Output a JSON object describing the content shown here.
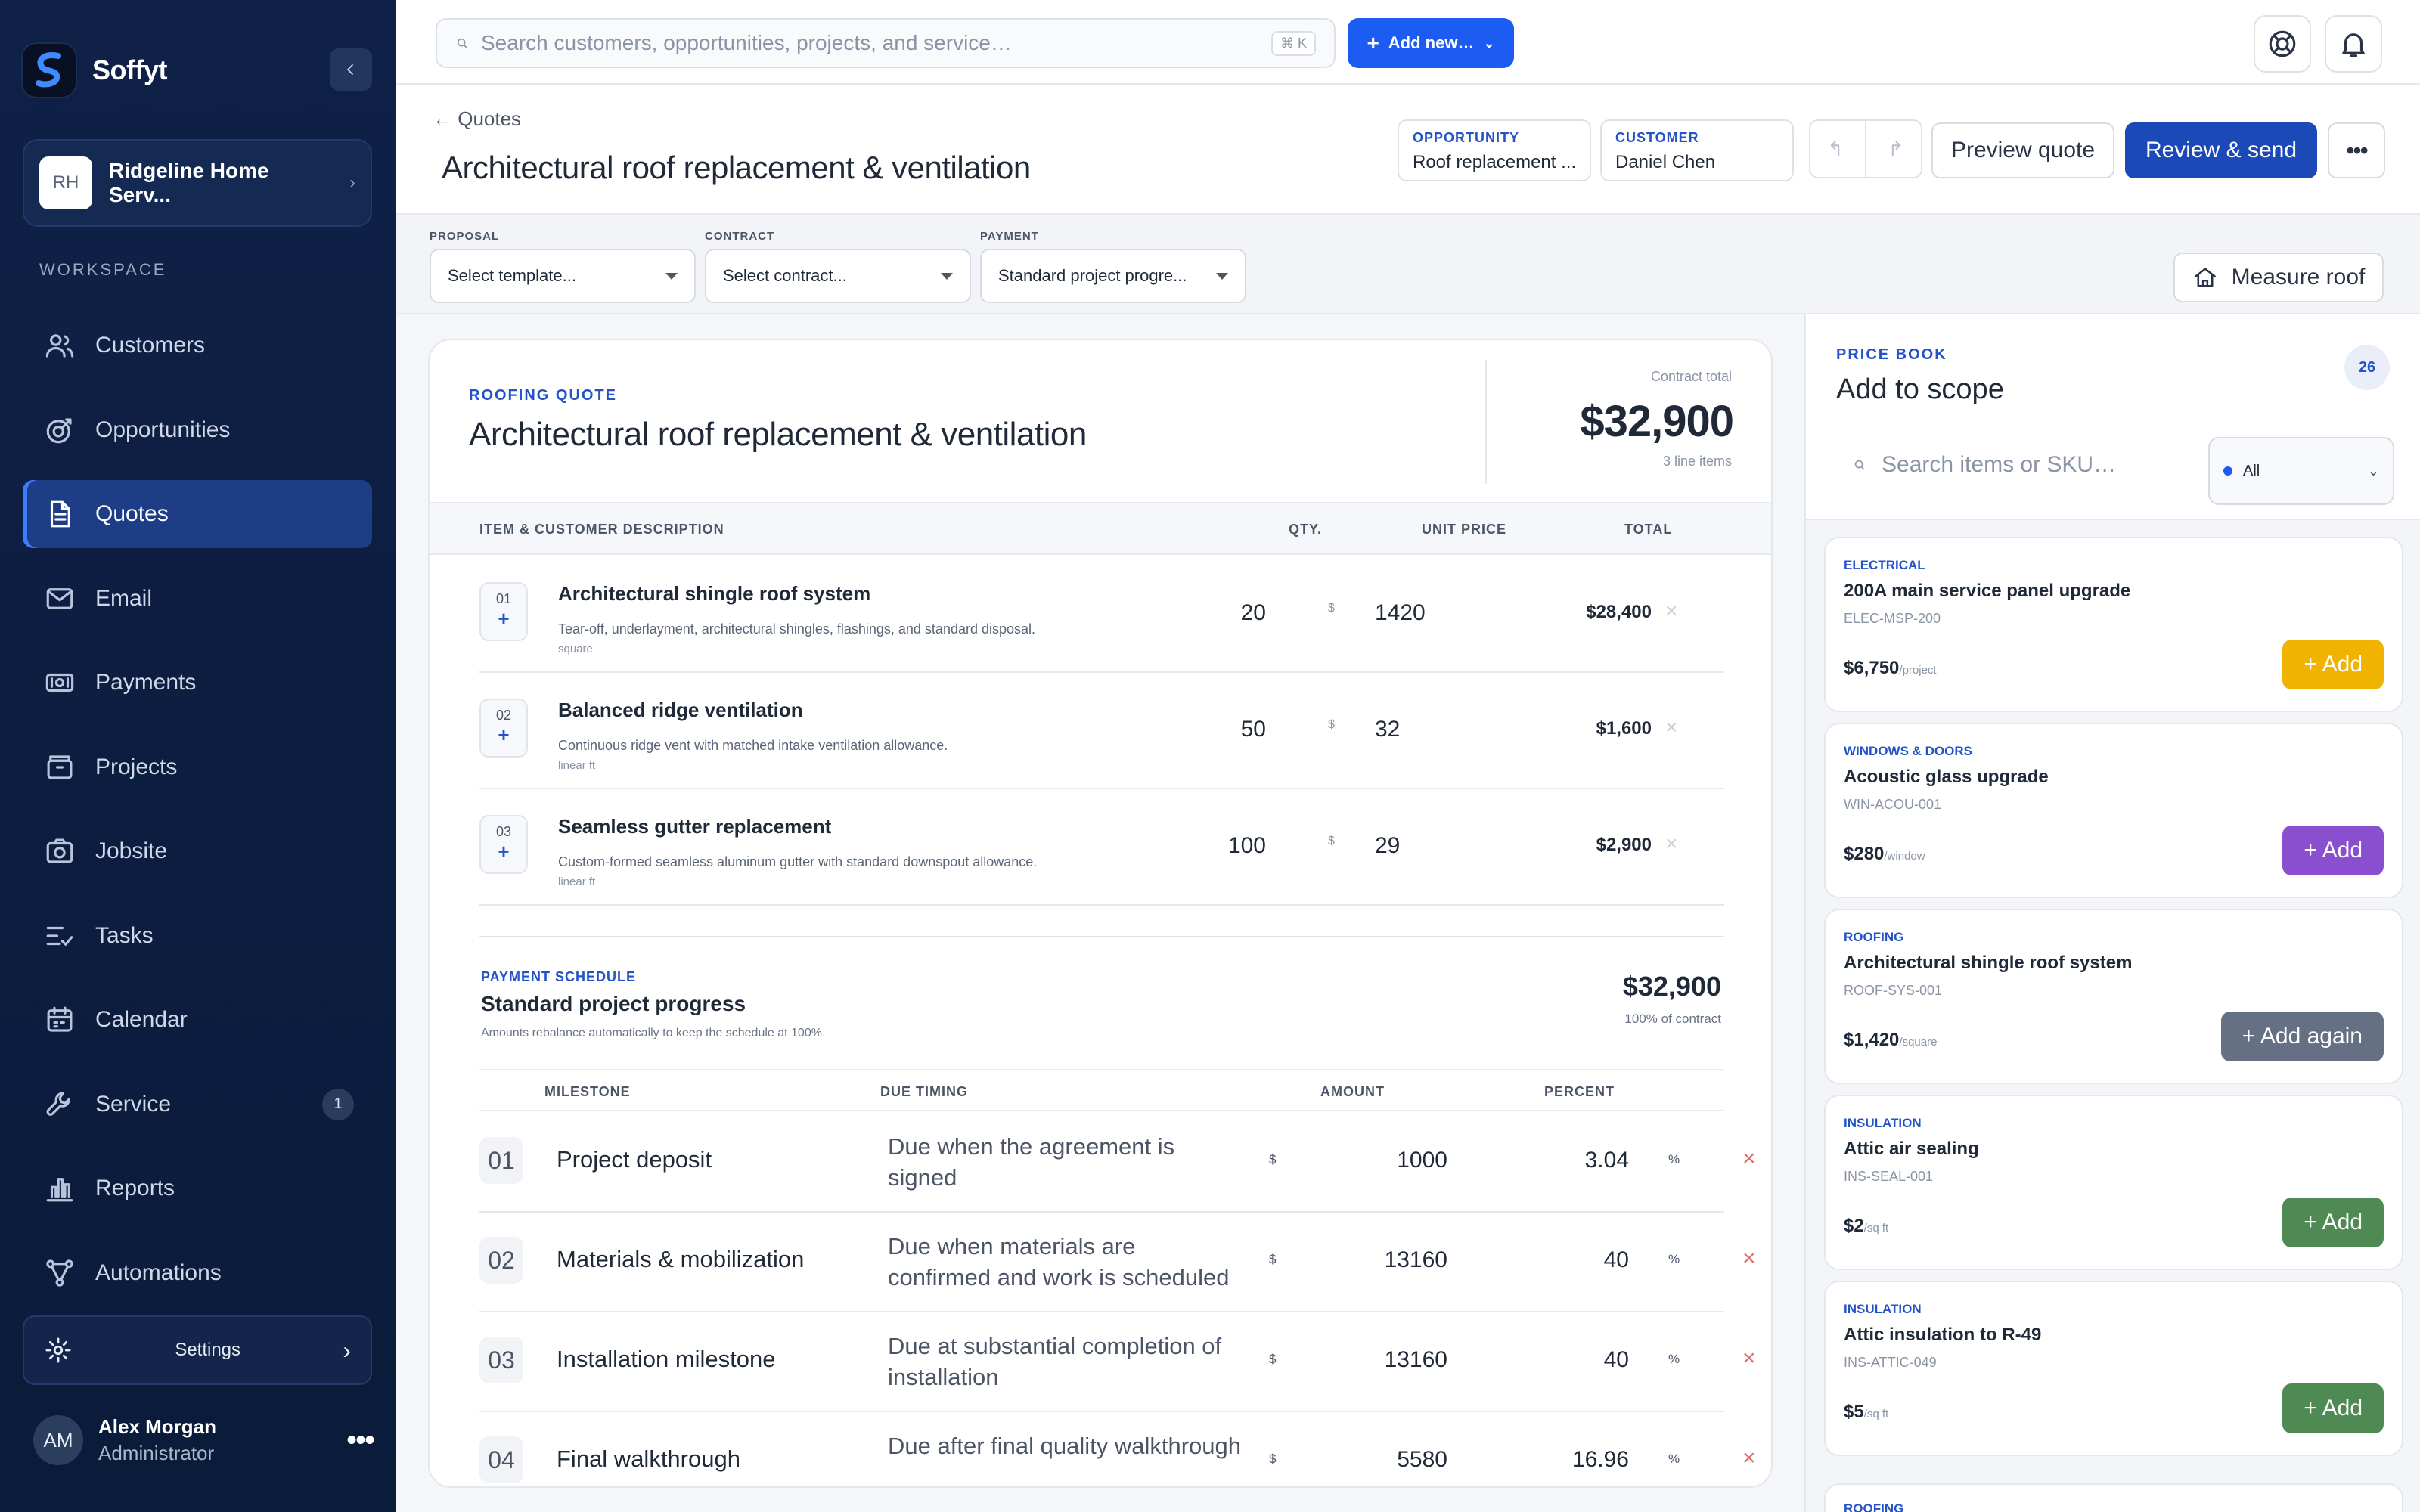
{
  "app": {
    "name": "Soffyt",
    "org_initials": "RH",
    "org_name": "Ridgeline Home Serv..."
  },
  "sidebar": {
    "section_label": "WORKSPACE",
    "items": [
      {
        "label": "Customers",
        "icon": "users-icon"
      },
      {
        "label": "Opportunities",
        "icon": "target-icon"
      },
      {
        "label": "Quotes",
        "icon": "document-icon",
        "active": true
      },
      {
        "label": "Email",
        "icon": "mail-icon"
      },
      {
        "label": "Payments",
        "icon": "cash-icon"
      },
      {
        "label": "Projects",
        "icon": "briefcase-icon"
      },
      {
        "label": "Jobsite",
        "icon": "camera-icon"
      },
      {
        "label": "Tasks",
        "icon": "checklist-icon"
      },
      {
        "label": "Calendar",
        "icon": "calendar-icon"
      },
      {
        "label": "Service",
        "icon": "wrench-icon",
        "badge": "1"
      },
      {
        "label": "Reports",
        "icon": "bar-chart-icon"
      },
      {
        "label": "Automations",
        "icon": "workflow-icon"
      }
    ],
    "settings_label": "Settings",
    "user": {
      "initials": "AM",
      "name": "Alex Morgan",
      "role": "Administrator"
    }
  },
  "topbar": {
    "search_placeholder": "Search customers, opportunities, projects, and service…",
    "shortcut": "⌘ K",
    "add_new_label": "Add new…"
  },
  "header": {
    "back_label": "← Quotes",
    "title": "Architectural roof replacement & ventilation",
    "opportunity_label": "OPPORTUNITY",
    "opportunity_value": "Roof replacement ...",
    "customer_label": "CUSTOMER",
    "customer_value": "Daniel Chen",
    "preview_label": "Preview quote",
    "send_label": "Review & send"
  },
  "selectors": {
    "proposal": {
      "label": "PROPOSAL",
      "value": "Select template..."
    },
    "contract": {
      "label": "CONTRACT",
      "value": "Select contract..."
    },
    "payment": {
      "label": "PAYMENT",
      "value": "Standard project progre..."
    },
    "measure_label": "Measure roof"
  },
  "quote": {
    "kicker": "ROOFING QUOTE",
    "title": "Architectural roof replacement & ventilation",
    "total_label": "Contract total",
    "total": "$32,900",
    "line_count": "3 line items",
    "columns": {
      "item": "ITEM & CUSTOMER DESCRIPTION",
      "qty": "QTY.",
      "unit_price": "UNIT PRICE",
      "total": "TOTAL"
    },
    "lines": [
      {
        "num": "01",
        "name": "Architectural shingle roof system",
        "desc": "Tear-off, underlayment, architectural shingles, flashings, and standard disposal.",
        "unit": "square",
        "qty": "20",
        "currency": "$",
        "price": "1420",
        "total": "$28,400"
      },
      {
        "num": "02",
        "name": "Balanced ridge ventilation",
        "desc": "Continuous ridge vent with matched intake ventilation allowance.",
        "unit": "linear ft",
        "qty": "50",
        "currency": "$",
        "price": "32",
        "total": "$1,600"
      },
      {
        "num": "03",
        "name": "Seamless gutter replacement",
        "desc": "Custom-formed seamless aluminum gutter with standard downspout allowance.",
        "unit": "linear ft",
        "qty": "100",
        "currency": "$",
        "price": "29",
        "total": "$2,900"
      }
    ]
  },
  "payment_schedule": {
    "kicker": "PAYMENT SCHEDULE",
    "title": "Standard project progress",
    "subtitle": "Amounts rebalance automatically to keep the schedule at 100%.",
    "total": "$32,900",
    "pct_label": "100% of contract",
    "columns": {
      "milestone": "MILESTONE",
      "due": "DUE TIMING",
      "amount": "AMOUNT",
      "percent": "PERCENT"
    },
    "milestones": [
      {
        "num": "01",
        "name": "Project deposit",
        "due": "Due when the agreement is signed",
        "currency": "$",
        "amount": "1000",
        "percent": "3.04",
        "pct_sign": "%"
      },
      {
        "num": "02",
        "name": "Materials & mobilization",
        "due": "Due when materials are confirmed and work is scheduled",
        "currency": "$",
        "amount": "13160",
        "percent": "40",
        "pct_sign": "%"
      },
      {
        "num": "03",
        "name": "Installation milestone",
        "due": "Due at substantial completion of installation",
        "currency": "$",
        "amount": "13160",
        "percent": "40",
        "pct_sign": "%"
      },
      {
        "num": "04",
        "name": "Final walkthrough",
        "due": "Due after final quality walkthrough",
        "currency": "$",
        "amount": "5580",
        "percent": "16.96",
        "pct_sign": "%"
      }
    ]
  },
  "price_book": {
    "kicker": "PRICE BOOK",
    "title": "Add to scope",
    "count": "26",
    "search_placeholder": "Search items or SKU…",
    "filter_value": "All",
    "items": [
      {
        "category": "ELECTRICAL",
        "name": "200A main service panel upgrade",
        "sku": "ELEC-MSP-200",
        "price": "$6,750",
        "unit": "/project",
        "action": "+ Add",
        "color": "#f0b400"
      },
      {
        "category": "WINDOWS & DOORS",
        "name": "Acoustic glass upgrade",
        "sku": "WIN-ACOU-001",
        "price": "$280",
        "unit": "/window",
        "action": "+ Add",
        "color": "#8a4fcf"
      },
      {
        "category": "ROOFING",
        "name": "Architectural shingle roof system",
        "sku": "ROOF-SYS-001",
        "price": "$1,420",
        "unit": "/square",
        "action": "+ Add again",
        "color": "#667085"
      },
      {
        "category": "INSULATION",
        "name": "Attic air sealing",
        "sku": "INS-SEAL-001",
        "price": "$2",
        "unit": "/sq ft",
        "action": "+ Add",
        "color": "#4f8a55"
      },
      {
        "category": "INSULATION",
        "name": "Attic insulation to R-49",
        "sku": "INS-ATTIC-049",
        "price": "$5",
        "unit": "/sq ft",
        "action": "+ Add",
        "color": "#4f8a55"
      }
    ],
    "partial_category": "ROOFING"
  }
}
